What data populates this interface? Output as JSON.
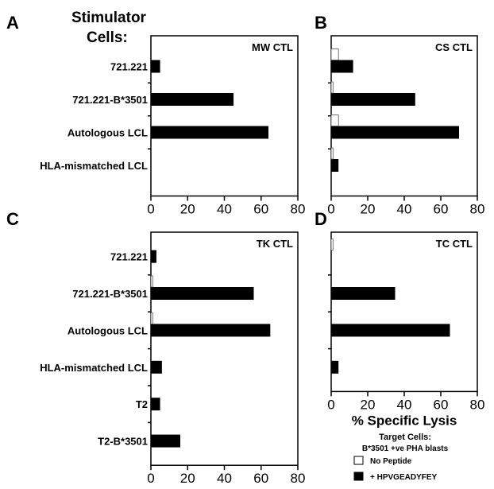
{
  "heading": {
    "line1": "Stimulator",
    "line2": "Cells:"
  },
  "legend": {
    "title": "Target Cells:",
    "subtitle": "B*3501 +ve PHA blasts",
    "entries": [
      {
        "label": "No Peptide",
        "color": "#ffffff"
      },
      {
        "label": "+ HPVGEADYFEY",
        "color": "#000000"
      }
    ]
  },
  "chart_data": [
    {
      "type": "bar",
      "orientation": "horizontal",
      "panel": "A",
      "title": "MW CTL",
      "categories": [
        "721.221",
        "721.221-B*3501",
        "Autologous LCL",
        "HLA-mismatched LCL"
      ],
      "series": [
        {
          "name": "No Peptide",
          "values": [
            0,
            0,
            0,
            0
          ]
        },
        {
          "name": "+ HPVGEADYFEY",
          "values": [
            5,
            45,
            64,
            0
          ]
        }
      ],
      "xlim": [
        0,
        80
      ],
      "xticks": [
        0,
        20,
        40,
        60,
        80
      ],
      "xlabel": ""
    },
    {
      "type": "bar",
      "orientation": "horizontal",
      "panel": "B",
      "title": "CS CTL",
      "categories": [
        "721.221",
        "721.221-B*3501",
        "Autologous LCL",
        "HLA-mismatched LCL"
      ],
      "series": [
        {
          "name": "No Peptide",
          "values": [
            4,
            1,
            4,
            1
          ]
        },
        {
          "name": "+ HPVGEADYFEY",
          "values": [
            12,
            46,
            70,
            4
          ]
        }
      ],
      "xlim": [
        0,
        80
      ],
      "xticks": [
        0,
        20,
        40,
        60,
        80
      ],
      "xlabel": ""
    },
    {
      "type": "bar",
      "orientation": "horizontal",
      "panel": "C",
      "title": "TK CTL",
      "categories": [
        "721.221",
        "721.221-B*3501",
        "Autologous LCL",
        "HLA-mismatched LCL",
        "T2",
        "T2-B*3501"
      ],
      "series": [
        {
          "name": "No Peptide",
          "values": [
            0,
            1,
            1,
            0,
            0,
            0
          ]
        },
        {
          "name": "+ HPVGEADYFEY",
          "values": [
            3,
            56,
            65,
            6,
            5,
            16
          ]
        }
      ],
      "xlim": [
        0,
        80
      ],
      "xticks": [
        0,
        20,
        40,
        60,
        80
      ],
      "xlabel": "% Specific Lysis"
    },
    {
      "type": "bar",
      "orientation": "horizontal",
      "panel": "D",
      "title": "TC CTL",
      "categories": [
        "721.221",
        "721.221-B*3501",
        "Autologous LCL",
        "HLA-mismatched LCL"
      ],
      "series": [
        {
          "name": "No Peptide",
          "values": [
            1,
            0,
            0,
            0
          ]
        },
        {
          "name": "+ HPVGEADYFEY",
          "values": [
            0,
            35,
            65,
            4
          ]
        }
      ],
      "xlim": [
        0,
        80
      ],
      "xticks": [
        0,
        20,
        40,
        60,
        80
      ],
      "xlabel": "% Specific Lysis"
    }
  ]
}
